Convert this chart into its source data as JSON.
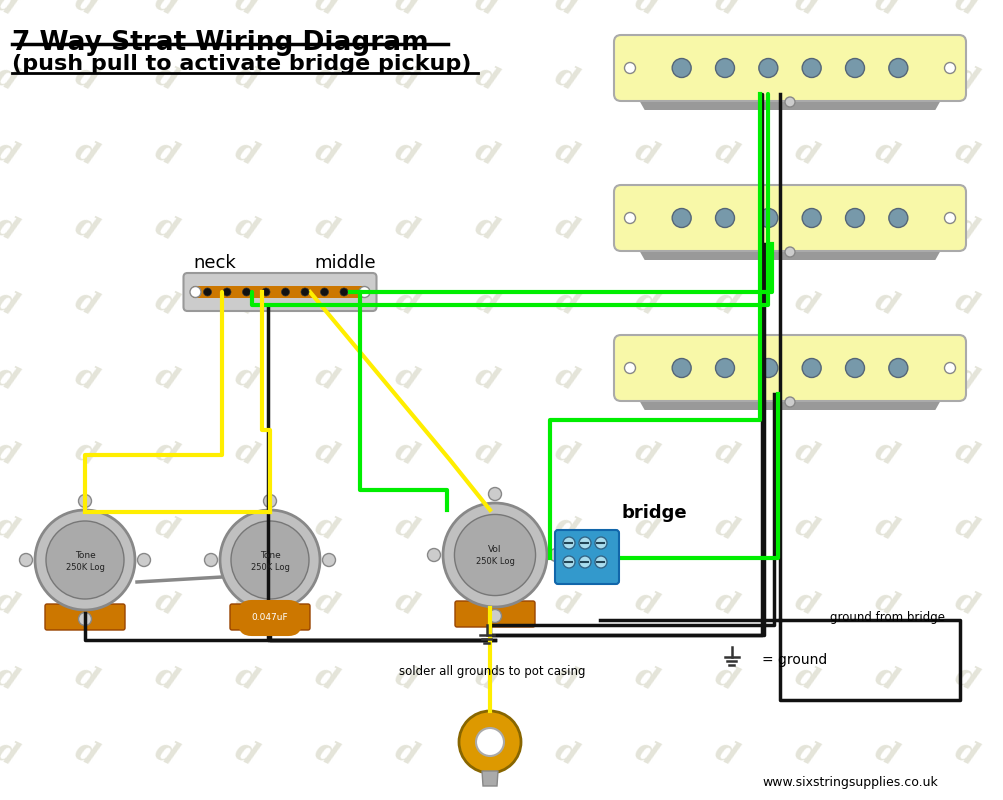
{
  "title_line1": "7 Way Strat Wiring Diagram",
  "title_line2": "(push pull to activate bridge pickup)",
  "bg_color": "#ffffff",
  "watermark_color": "#deded0",
  "pickup_fill": "#f8f8a8",
  "pickup_stroke": "#aaaaaa",
  "pickup_shadow": "#999999",
  "pole_fill": "#7799aa",
  "switch_fill": "#cccccc",
  "pot_fill": "#c0c0c0",
  "orange_accent": "#cc7700",
  "orange_bright": "#dd9900",
  "blue_connector": "#3399cc",
  "wire_yellow": "#ffee00",
  "wire_green": "#00ee00",
  "wire_black": "#111111",
  "wire_gray": "#888888",
  "website_text": "www.sixstringsupplies.co.uk",
  "label_neck": "neck",
  "label_middle": "middle",
  "label_bridge": "bridge",
  "label_tone1": [
    "Tone",
    "250K Log"
  ],
  "label_tone2": [
    "Tone",
    "250K Log"
  ],
  "label_vol": [
    "Vol",
    "250K Log"
  ],
  "label_cap": "0.047uF",
  "label_solder": "solder all grounds to pot casing",
  "label_ground_bridge": "ground from bridge",
  "label_ground": "= ground"
}
